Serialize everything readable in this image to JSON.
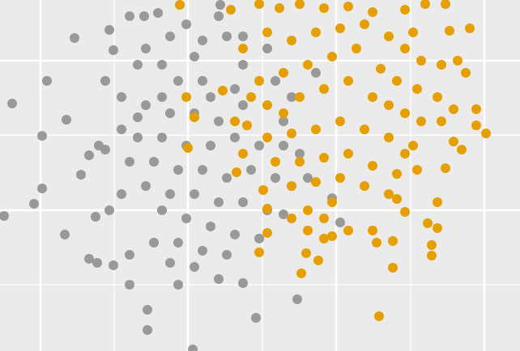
{
  "chart_data": {
    "type": "scatter",
    "background": "#ebebeb",
    "grid": true,
    "grid_color": "#ffffff",
    "xlim": [
      0,
      642
    ],
    "ylim": [
      0,
      434
    ],
    "xticks": [
      50,
      232,
      415,
      598
    ],
    "x_minor_ticks": [
      141,
      324,
      507
    ],
    "yticks": [
      174,
      359
    ],
    "y_minor_ticks": [
      82,
      267
    ],
    "series": [
      {
        "color": "#999999",
        "x": [
          15,
          52,
          5,
          42,
          52,
          80,
          92,
          58,
          82,
          238,
          182,
          316,
          367,
          160,
          182,
          110,
          120,
          140,
          160,
          100,
          110,
          122,
          130,
          118,
          135,
          150,
          130,
          140,
          135,
          160,
          178,
          195,
          272,
          270,
          230,
          210,
          250,
          280,
          300,
          180,
          170,
          200,
          220,
          250,
          290,
          180,
          210,
          240,
          270,
          300,
          150,
          170,
          200,
          230,
          260,
          290,
          320,
          350,
          370,
          160,
          190,
          220,
          250,
          280,
          310,
          340,
          360,
          180,
          210,
          240,
          270,
          300,
          330,
          350,
          200,
          230,
          260,
          290,
          320,
          190,
          220,
          250,
          280,
          210,
          240,
          270,
          300,
          220,
          330,
          340,
          360,
          390,
          410,
          420,
          260,
          200,
          170,
          150,
          240,
          300,
          350,
          380
        ],
        "values": [
          306,
          266,
          167,
          182,
          201,
          144,
          387,
          334,
          286,
          2,
          26,
          41,
          64,
          82,
          51,
          114,
          109,
          106,
          119,
          218,
          242,
          254,
          249,
          166,
          174,
          194,
          334,
          372,
          397,
          414,
          414,
          418,
          428,
          414,
          404,
          389,
          384,
          389,
          389,
          374,
          354,
          354,
          334,
          334,
          324,
          304,
          294,
          294,
          284,
          304,
          274,
          264,
          264,
          254,
          254,
          264,
          254,
          254,
          244,
          234,
          234,
          224,
          224,
          214,
          224,
          214,
          204,
          204,
          194,
          194,
          184,
          184,
          174,
          169,
          174,
          164,
          154,
          144,
          139,
          134,
          134,
          124,
          119,
          109,
          104,
          89,
          84,
          82,
          374,
          334,
          314,
          344,
          189,
          159,
          314,
          314,
          289,
          314,
          364,
          354,
          284,
          214
        ]
      },
      {
        "color": "#e69f00",
        "x": [
          222,
          285,
          320,
          345,
          370,
          400,
          430,
          460,
          500,
          525,
          550,
          510,
          555,
          580,
          300,
          330,
          360,
          390,
          420,
          450,
          480,
          500,
          520,
          545,
          565,
          575,
          320,
          350,
          380,
          410,
          440,
          470,
          490,
          515,
          540,
          560,
          588,
          600,
          588,
          560,
          570,
          230,
          240,
          232,
          275,
          290,
          305,
          300,
          292,
          310,
          330,
          350,
          370,
          400,
          430,
          460,
          480,
          500,
          520,
          545,
          330,
          360,
          390,
          420,
          450,
          480,
          510,
          500,
          340,
          370,
          400,
          430,
          460,
          490,
          515,
          550,
          325,
          360,
          390,
          420,
          450,
          480,
          500,
          540,
          330,
          360,
          400,
          430,
          460,
          490,
          528,
          540,
          330,
          380,
          410,
          465,
          485,
          533,
          400,
          378,
          393,
          372,
          485,
          533,
          468,
          320,
          380,
          410
        ],
        "values": [
          428,
          422,
          429,
          424,
          429,
          424,
          426,
          419,
          422,
          429,
          429,
          394,
          396,
          399,
          374,
          394,
          384,
          394,
          399,
          404,
          389,
          374,
          359,
          354,
          359,
          344,
          334,
          344,
          354,
          364,
          374,
          349,
          334,
          324,
          314,
          299,
          299,
          269,
          279,
          259,
          249,
          314,
          289,
          251,
          322,
          284,
          279,
          244,
          221,
          314,
          304,
          294,
          314,
          324,
          334,
          314,
          304,
          294,
          284,
          284,
          264,
          269,
          274,
          284,
          274,
          264,
          254,
          244,
          234,
          234,
          239,
          244,
          229,
          219,
          224,
          226,
          199,
          204,
          209,
          214,
          204,
          194,
          172,
          184,
          176,
          164,
          164,
          149,
          149,
          188,
          158,
          152,
          146,
          149,
          142,
          134,
          136,
          131,
          139,
          121,
          112,
          96,
          103,
          118,
          43,
          122,
          174,
          184
        ]
      }
    ]
  }
}
